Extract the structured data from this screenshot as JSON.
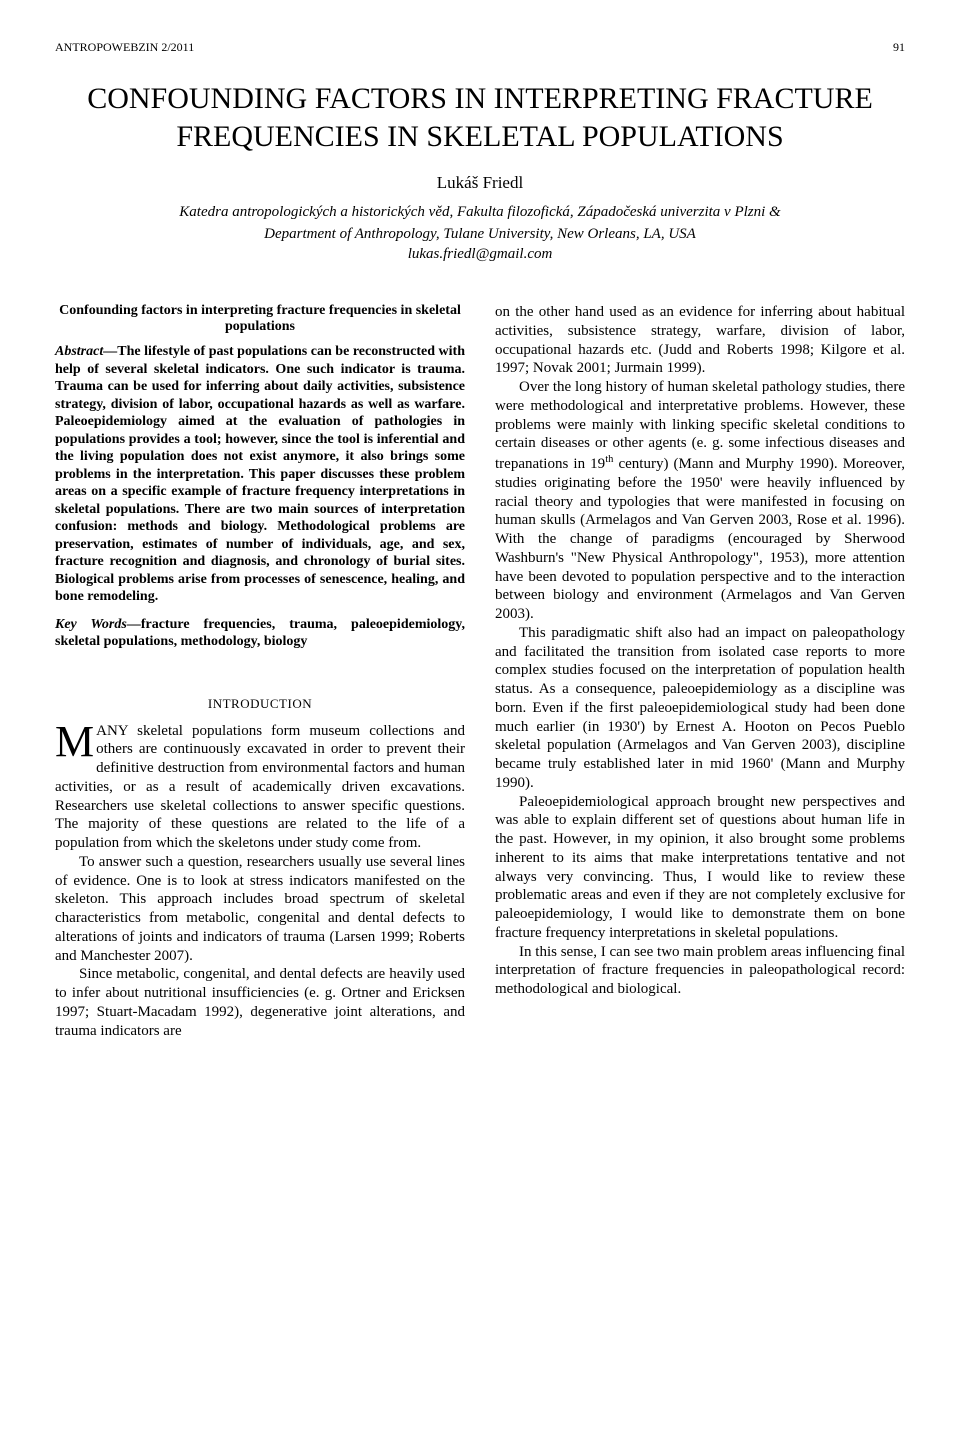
{
  "journal": "ANTROPOWEBZIN 2/2011",
  "pageNumber": "91",
  "title": "CONFOUNDING FACTORS IN INTERPRETING FRACTURE FREQUENCIES IN SKELETAL POPULATIONS",
  "author": "Lukáš Friedl",
  "affil1": "Katedra antropologických a historických věd, Fakulta filozofická, Západočeská univerzita v Plzni &",
  "affil2": "Department of Anthropology, Tulane University, New Orleans, LA, USA",
  "email": "lukas.friedl@gmail.com",
  "absHead": "Confounding factors in interpreting fracture frequencies in skeletal populations",
  "absLabel": "Abstract—",
  "absText": "The lifestyle of past populations can be reconstructed with help of several skeletal indicators. One such indicator is trauma. Trauma can be used for inferring about daily activities, subsistence strategy, division of labor, occupational hazards as well as warfare. Paleoepidemiology aimed at the evaluation of pathologies in populations provides a tool; however, since the tool is inferential and the living population does not exist anymore, it also brings some problems in the interpretation. This paper discusses these problem areas on a specific example of fracture frequency interpretations in skeletal populations. There are two main sources of interpretation confusion: methods and biology. Methodological problems are preservation, estimates of number of individuals, age, and sex, fracture recognition and diagnosis, and chronology of burial sites. Biological problems arise from processes of senescence, healing, and bone remodeling.",
  "kwLabel": "Key Words—",
  "kwText": "fracture frequencies, trauma, paleoepidemiology, skeletal populations, methodology, biology",
  "introTitle": "INTRODUCTION",
  "dropcap": "M",
  "leftPara1a": "ANY skeletal populations form museum collections and others are continuously excavated in order to prevent their definitive destruction from environmental factors and human activities, or as a result of academically driven excavations. Researchers use skeletal collections to answer specific questions. The majority of these questions are related to the life of a population from which the skeletons under study come from.",
  "leftPara2": "To answer such a question, researchers usually use several lines of evidence. One is to look at stress indicators manifested on the skeleton. This approach includes broad spectrum of skeletal characteristics from metabolic, congenital and dental defects to alterations of joints and indicators of trauma (Larsen 1999; Roberts and Manchester 2007).",
  "leftPara3": "Since metabolic, congenital, and dental defects are heavily used to infer about nutritional insufficiencies (e. g. Ortner and Ericksen 1997; Stuart-Macadam 1992), degenerative joint alterations, and trauma indicators are",
  "rightPara1": "on the other hand used as an evidence for inferring about habitual activities, subsistence strategy, warfare, division of labor, occupational hazards etc. (Judd and Roberts 1998; Kilgore et al. 1997; Novak 2001; Jurmain 1999).",
  "rightPara2a": "Over the long history of human skeletal pathology studies, there were methodological and interpretative problems. However, these problems were mainly with linking specific skeletal conditions to certain diseases or other agents (e. g. some infectious diseases and trepanations in 19",
  "rightPara2sup": "th",
  "rightPara2b": " century) (Mann and Murphy 1990). Moreover, studies originating before the 1950' were heavily influenced by racial theory and typologies that were manifested in focusing on human skulls (Armelagos and Van Gerven 2003, Rose et al. 1996). With the change of paradigms (encouraged by Sherwood Washburn's \"New Physical Anthropology\", 1953), more attention have been devoted to population perspective and to the interaction between biology and environment (Armelagos and Van Gerven 2003).",
  "rightPara3": "This paradigmatic shift also had an impact on paleopathology and facilitated the transition from isolated case reports to more complex studies focused on the interpretation of population health status. As a consequence, paleoepidemiology as a discipline was born. Even if the first paleoepidemiological study had been done much earlier (in 1930') by Ernest A. Hooton on Pecos Pueblo skeletal population (Armelagos and Van Gerven 2003), discipline became truly established later in mid 1960' (Mann and Murphy 1990).",
  "rightPara4": "Paleoepidemiological approach brought new perspectives and was able to explain different set of questions about human life in the past. However, in my opinion, it also brought some problems inherent to its aims that make interpretations tentative and not always very convincing. Thus, I would like to review these problematic areas and even if they are not completely exclusive for paleoepidemiology, I would like to demonstrate them on bone fracture frequency interpretations in skeletal populations.",
  "rightPara5": "In this sense, I can see two main problem areas influencing final interpretation of fracture frequencies in paleopathological record: methodological and biological."
}
